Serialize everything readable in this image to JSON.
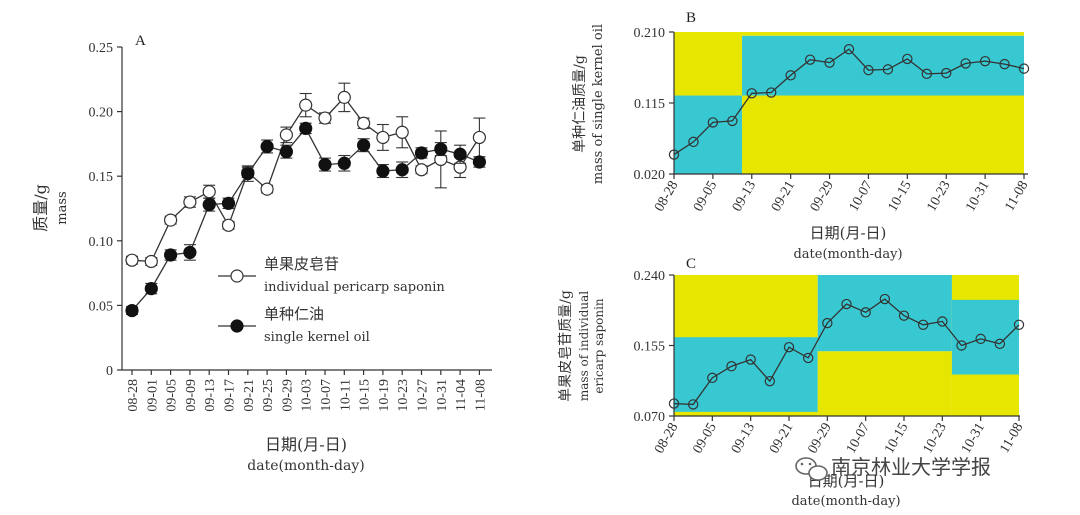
{
  "chart_data": [
    {
      "id": "A",
      "type": "line",
      "panel_label": "A",
      "xlabel_cn": "日期(月-日)",
      "xlabel_en": "date(month-day)",
      "ylabel_cn": "质量/g",
      "ylabel_en": "mass",
      "ylim": [
        0,
        0.25
      ],
      "yticks": [
        "0",
        "0.05",
        "0.10",
        "0.15",
        "0.20",
        "0.25"
      ],
      "categories": [
        "08-28",
        "09-01",
        "09-05",
        "09-09",
        "09-13",
        "09-17",
        "09-21",
        "09-25",
        "09-29",
        "10-03",
        "10-07",
        "10-11",
        "10-15",
        "10-19",
        "10-23",
        "10-27",
        "10-31",
        "11-04",
        "11-08"
      ],
      "series": [
        {
          "name_cn": "单果皮皂苷",
          "name_en": "individual pericarp saponin",
          "marker": "open",
          "values": [
            0.085,
            0.084,
            0.116,
            0.13,
            0.138,
            0.112,
            0.153,
            0.14,
            0.182,
            0.205,
            0.195,
            0.211,
            0.191,
            0.18,
            0.184,
            0.155,
            0.163,
            0.157,
            0.18
          ],
          "errors": [
            0.003,
            0.003,
            0.003,
            0.004,
            0.005,
            0.003,
            0.004,
            0.003,
            0.006,
            0.009,
            0.004,
            0.011,
            0.004,
            0.01,
            0.012,
            0.003,
            0.022,
            0.008,
            0.015
          ]
        },
        {
          "name_cn": "单种仁油",
          "name_en": "single kernel oil",
          "marker": "filled",
          "values": [
            0.046,
            0.063,
            0.089,
            0.091,
            0.128,
            0.129,
            0.152,
            0.173,
            0.169,
            0.187,
            0.159,
            0.16,
            0.174,
            0.154,
            0.155,
            0.168,
            0.171,
            0.167,
            0.161
          ],
          "errors": [
            0.003,
            0.004,
            0.004,
            0.006,
            0.005,
            0.004,
            0.006,
            0.005,
            0.005,
            0.004,
            0.005,
            0.006,
            0.005,
            0.005,
            0.006,
            0.004,
            0.005,
            0.007,
            0.004
          ]
        }
      ]
    },
    {
      "id": "B",
      "type": "line",
      "panel_label": "B",
      "xlabel_cn": "日期(月-日)",
      "xlabel_en": "date(month-day)",
      "ylabel_cn": "单种仁油质量/g",
      "ylabel_en": "mass of single kernel oil",
      "ylim": [
        0.02,
        0.21
      ],
      "yticks": [
        "0.020",
        "0.115",
        "0.210"
      ],
      "xticks": [
        "08-28",
        "09-05",
        "09-13",
        "09-21",
        "09-29",
        "10-07",
        "10-15",
        "10-23",
        "10-31",
        "11-08"
      ],
      "background_colors": {
        "yellow": "#e6e600",
        "cyan": "#38c8d2"
      },
      "regions": [
        {
          "color": "yellow",
          "x0": 0,
          "x1": 3.5,
          "y0": 0.125,
          "y1": 0.21
        },
        {
          "color": "cyan",
          "x0": 0,
          "x1": 3.5,
          "y0": 0.02,
          "y1": 0.125
        },
        {
          "color": "yellow",
          "x0": 3.5,
          "x1": 18,
          "y0": 0.02,
          "y1": 0.125
        },
        {
          "color": "cyan",
          "x0": 3.5,
          "x1": 18,
          "y0": 0.125,
          "y1": 0.205
        },
        {
          "color": "yellow",
          "x0": 3.5,
          "x1": 18,
          "y0": 0.205,
          "y1": 0.21
        }
      ],
      "values": [
        0.046,
        0.063,
        0.089,
        0.091,
        0.128,
        0.129,
        0.152,
        0.173,
        0.169,
        0.187,
        0.159,
        0.16,
        0.174,
        0.154,
        0.155,
        0.168,
        0.171,
        0.167,
        0.161
      ]
    },
    {
      "id": "C",
      "type": "line",
      "panel_label": "C",
      "xlabel_cn": "日期(月-日)",
      "xlabel_en": "date(month-day)",
      "ylabel_cn": "单果皮皂苷质量/g",
      "ylabel_en_1": "mass of individual",
      "ylabel_en_2": "ericarp saponin",
      "ylim": [
        0.07,
        0.24
      ],
      "yticks": [
        "0.070",
        "0.155",
        "0.240"
      ],
      "xticks": [
        "08-28",
        "09-05",
        "09-13",
        "09-21",
        "09-29",
        "10-07",
        "10-15",
        "10-23",
        "10-31",
        "11-08"
      ],
      "background_colors": {
        "yellow": "#e6e600",
        "cyan": "#38c8d2"
      },
      "regions": [
        {
          "color": "yellow",
          "x0": 0,
          "x1": 7.5,
          "y0": 0.07,
          "y1": 0.24
        },
        {
          "color": "cyan",
          "x0": 0,
          "x1": 7.5,
          "y0": 0.075,
          "y1": 0.165
        },
        {
          "color": "cyan",
          "x0": 7.5,
          "x1": 14.5,
          "y0": 0.148,
          "y1": 0.24
        },
        {
          "color": "yellow",
          "x0": 7.5,
          "x1": 14.5,
          "y0": 0.07,
          "y1": 0.148
        },
        {
          "color": "yellow",
          "x0": 14.5,
          "x1": 18,
          "y0": 0.07,
          "y1": 0.24
        },
        {
          "color": "cyan",
          "x0": 14.5,
          "x1": 18,
          "y0": 0.12,
          "y1": 0.21
        }
      ],
      "values": [
        0.085,
        0.084,
        0.116,
        0.13,
        0.138,
        0.112,
        0.153,
        0.14,
        0.182,
        0.205,
        0.195,
        0.211,
        0.191,
        0.18,
        0.184,
        0.155,
        0.163,
        0.157,
        0.18
      ]
    }
  ],
  "watermark": {
    "icon": "wechat-icon",
    "text": "南京林业大学学报"
  }
}
